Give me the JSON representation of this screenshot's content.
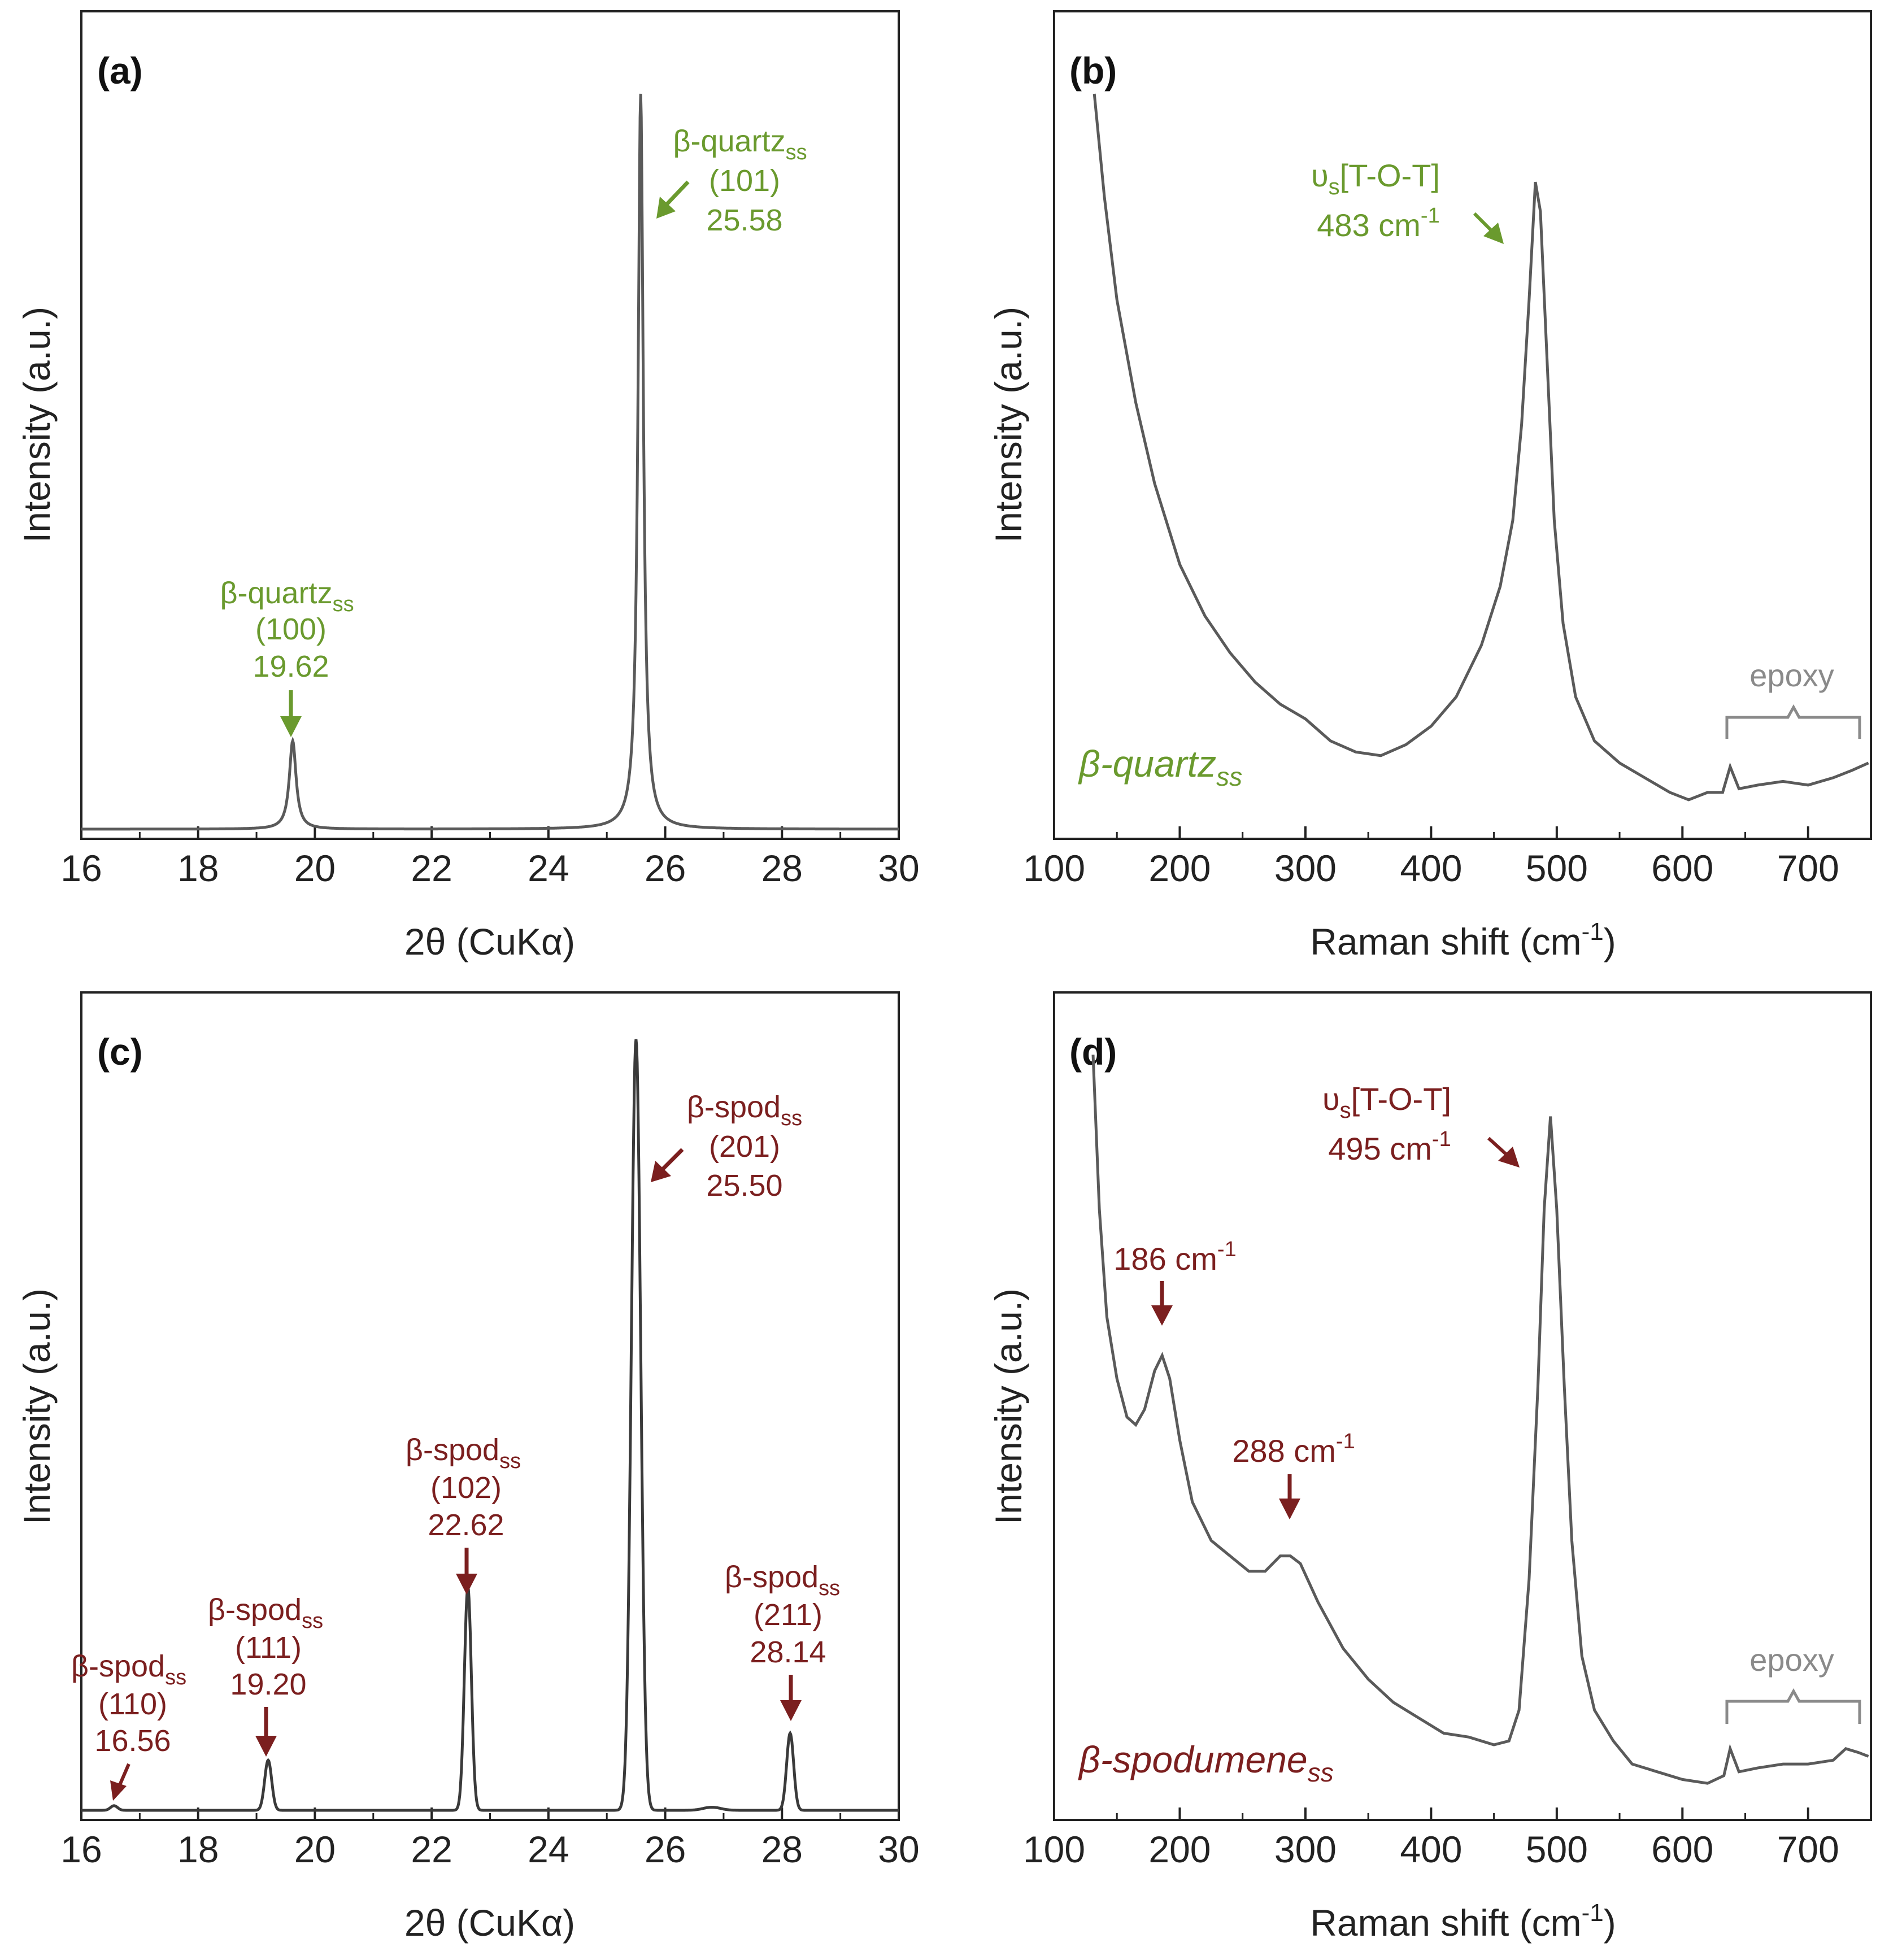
{
  "colors": {
    "green": "#6a9a2e",
    "red": "#7b1f1f",
    "curve": "#5a5a5a",
    "axis": "#222222",
    "epoxy": "#8a8a8a"
  },
  "chart_data": [
    {
      "panel": "(a)",
      "type": "line",
      "xlabel": "2θ (CuKα)",
      "ylabel": "Intensity (a.u.)",
      "xlim": [
        16,
        30
      ],
      "ylim": [
        0,
        1.1
      ],
      "xticks": [
        16,
        18,
        20,
        22,
        24,
        26,
        28,
        30
      ],
      "grid": false,
      "peaks": [
        {
          "x": 19.62,
          "y": 0.12,
          "w": 0.07,
          "shape": "lorentz"
        },
        {
          "x": 25.58,
          "y": 1.0,
          "w": 0.055,
          "shape": "lorentz"
        }
      ],
      "annotations": [
        {
          "name": "β-quartz",
          "sub": "ss",
          "hkl": "(100)",
          "value": "19.62",
          "color": "green",
          "arrow": "down"
        },
        {
          "name": "β-quartz",
          "sub": "ss",
          "hkl": "(101)",
          "value": "25.58",
          "color": "green",
          "arrow": "diag"
        }
      ]
    },
    {
      "panel": "(b)",
      "type": "line",
      "xlabel_main": "Raman shift (cm",
      "xlabel_sup": "-1",
      "xlabel_end": ")",
      "ylabel": "Intensity (a.u.)",
      "xlim": [
        100,
        750
      ],
      "ylim": [
        0,
        1
      ],
      "xticks": [
        100,
        200,
        300,
        400,
        500,
        600,
        700
      ],
      "grid": false,
      "sample_label": "β-quartz",
      "sample_sub": "ss",
      "sample_color": "green",
      "curve": [
        [
          132,
          1.0
        ],
        [
          140,
          0.86
        ],
        [
          150,
          0.72
        ],
        [
          165,
          0.58
        ],
        [
          180,
          0.47
        ],
        [
          200,
          0.36
        ],
        [
          220,
          0.29
        ],
        [
          240,
          0.24
        ],
        [
          260,
          0.2
        ],
        [
          280,
          0.17
        ],
        [
          300,
          0.15
        ],
        [
          320,
          0.12
        ],
        [
          340,
          0.105
        ],
        [
          360,
          0.1
        ],
        [
          380,
          0.115
        ],
        [
          400,
          0.14
        ],
        [
          420,
          0.18
        ],
        [
          440,
          0.25
        ],
        [
          455,
          0.33
        ],
        [
          465,
          0.42
        ],
        [
          472,
          0.55
        ],
        [
          478,
          0.72
        ],
        [
          483,
          0.88
        ],
        [
          487,
          0.84
        ],
        [
          492,
          0.65
        ],
        [
          498,
          0.42
        ],
        [
          505,
          0.28
        ],
        [
          515,
          0.18
        ],
        [
          530,
          0.12
        ],
        [
          550,
          0.09
        ],
        [
          570,
          0.07
        ],
        [
          590,
          0.05
        ],
        [
          605,
          0.04
        ],
        [
          620,
          0.05
        ],
        [
          632,
          0.05
        ],
        [
          638,
          0.085
        ],
        [
          645,
          0.055
        ],
        [
          660,
          0.06
        ],
        [
          680,
          0.065
        ],
        [
          700,
          0.06
        ],
        [
          720,
          0.07
        ],
        [
          735,
          0.08
        ],
        [
          748,
          0.09
        ]
      ],
      "annotations": [
        {
          "symbol": "υ",
          "sub": "s",
          "text": "[T-O-T]",
          "line2": "483 cm",
          "sup2": "-1",
          "color": "green",
          "arrow": "diag"
        },
        {
          "text": "epoxy",
          "color": "epoxy",
          "range": [
            635,
            745
          ]
        }
      ]
    },
    {
      "panel": "(c)",
      "type": "line",
      "xlabel": "2θ (CuKα)",
      "ylabel": "Intensity (a.u.)",
      "xlim": [
        16,
        30
      ],
      "ylim": [
        0,
        1.1
      ],
      "xticks": [
        16,
        18,
        20,
        22,
        24,
        26,
        28,
        30
      ],
      "grid": false,
      "peaks": [
        {
          "x": 16.56,
          "y": 0.006,
          "w": 0.06,
          "shape": "gauss"
        },
        {
          "x": 19.2,
          "y": 0.065,
          "w": 0.06,
          "shape": "gauss"
        },
        {
          "x": 22.62,
          "y": 0.29,
          "w": 0.06,
          "shape": "gauss"
        },
        {
          "x": 25.5,
          "y": 1.0,
          "w": 0.08,
          "shape": "gauss"
        },
        {
          "x": 28.14,
          "y": 0.1,
          "w": 0.06,
          "shape": "gauss"
        },
        {
          "x": 26.8,
          "y": 0.004,
          "w": 0.15,
          "shape": "gauss"
        }
      ],
      "annotations": [
        {
          "name": "β-spod",
          "sub": "ss",
          "hkl": "(110)",
          "value": "16.56",
          "color": "red",
          "arrow": "diag-left"
        },
        {
          "name": "β-spod",
          "sub": "ss",
          "hkl": "(111)",
          "value": "19.20",
          "color": "red",
          "arrow": "down"
        },
        {
          "name": "β-spod",
          "sub": "ss",
          "hkl": "(102)",
          "value": "22.62",
          "color": "red",
          "arrow": "down"
        },
        {
          "name": "β-spod",
          "sub": "ss",
          "hkl": "(201)",
          "value": "25.50",
          "color": "red",
          "arrow": "diag"
        },
        {
          "name": "β-spod",
          "sub": "ss",
          "hkl": "(211)",
          "value": "28.14",
          "color": "red",
          "arrow": "down"
        }
      ]
    },
    {
      "panel": "(d)",
      "type": "line",
      "xlabel_main": "Raman shift (cm",
      "xlabel_sup": "-1",
      "xlabel_end": ")",
      "ylabel": "Intensity (a.u.)",
      "xlim": [
        100,
        750
      ],
      "ylim": [
        0,
        1
      ],
      "xticks": [
        100,
        200,
        300,
        400,
        500,
        600,
        700
      ],
      "grid": false,
      "sample_label": "β-spodumene",
      "sample_sub": "ss",
      "sample_color": "red",
      "curve": [
        [
          131,
          0.98
        ],
        [
          136,
          0.78
        ],
        [
          142,
          0.64
        ],
        [
          150,
          0.56
        ],
        [
          158,
          0.51
        ],
        [
          165,
          0.5
        ],
        [
          172,
          0.52
        ],
        [
          180,
          0.57
        ],
        [
          186,
          0.59
        ],
        [
          192,
          0.56
        ],
        [
          200,
          0.48
        ],
        [
          210,
          0.4
        ],
        [
          225,
          0.35
        ],
        [
          240,
          0.33
        ],
        [
          255,
          0.31
        ],
        [
          268,
          0.31
        ],
        [
          280,
          0.33
        ],
        [
          288,
          0.33
        ],
        [
          296,
          0.32
        ],
        [
          310,
          0.27
        ],
        [
          330,
          0.21
        ],
        [
          350,
          0.17
        ],
        [
          370,
          0.14
        ],
        [
          390,
          0.12
        ],
        [
          410,
          0.1
        ],
        [
          430,
          0.095
        ],
        [
          450,
          0.085
        ],
        [
          462,
          0.09
        ],
        [
          470,
          0.13
        ],
        [
          478,
          0.3
        ],
        [
          485,
          0.55
        ],
        [
          490,
          0.78
        ],
        [
          495,
          0.9
        ],
        [
          500,
          0.78
        ],
        [
          506,
          0.55
        ],
        [
          512,
          0.35
        ],
        [
          520,
          0.2
        ],
        [
          530,
          0.13
        ],
        [
          545,
          0.09
        ],
        [
          560,
          0.06
        ],
        [
          580,
          0.05
        ],
        [
          600,
          0.04
        ],
        [
          620,
          0.035
        ],
        [
          633,
          0.045
        ],
        [
          638,
          0.08
        ],
        [
          645,
          0.05
        ],
        [
          660,
          0.055
        ],
        [
          680,
          0.06
        ],
        [
          700,
          0.06
        ],
        [
          720,
          0.065
        ],
        [
          730,
          0.08
        ],
        [
          740,
          0.075
        ],
        [
          748,
          0.07
        ]
      ],
      "annotations": [
        {
          "symbol": "υ",
          "sub": "s",
          "text": "[T-O-T]",
          "line2": "495 cm",
          "sup2": "-1",
          "color": "red",
          "arrow": "diag"
        },
        {
          "text": "186 cm",
          "sup": "-1",
          "color": "red",
          "arrow": "down"
        },
        {
          "text": "288 cm",
          "sup": "-1",
          "color": "red",
          "arrow": "down"
        },
        {
          "text": "epoxy",
          "color": "epoxy",
          "range": [
            635,
            745
          ]
        }
      ]
    }
  ]
}
